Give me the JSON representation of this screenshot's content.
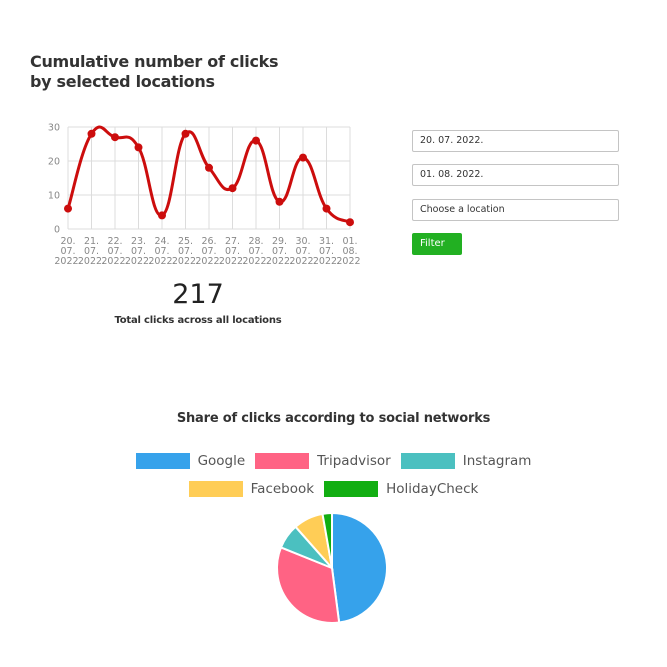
{
  "header": {
    "title_line1": "Cumulative number of clicks",
    "title_line2": "by selected locations"
  },
  "filters": {
    "date_from": "20. 07. 2022.",
    "date_to": "01. 08. 2022.",
    "location_placeholder": "Choose a location",
    "filter_label": "Filter"
  },
  "summary": {
    "total_value": "217",
    "total_label": "Total clicks across all locations"
  },
  "social": {
    "title": "Share of clicks according to social networks"
  },
  "chart_data": [
    {
      "type": "line",
      "title": "",
      "xlabel": "",
      "ylabel": "",
      "categories": [
        [
          "20.",
          "07.",
          "2022."
        ],
        [
          "21.",
          "07.",
          "2022."
        ],
        [
          "22.",
          "07.",
          "2022."
        ],
        [
          "23.",
          "07.",
          "2022."
        ],
        [
          "24.",
          "07.",
          "2022."
        ],
        [
          "25.",
          "07.",
          "2022."
        ],
        [
          "26.",
          "07.",
          "2022."
        ],
        [
          "27.",
          "07.",
          "2022."
        ],
        [
          "28.",
          "07.",
          "2022."
        ],
        [
          "29.",
          "07.",
          "2022."
        ],
        [
          "30.",
          "07.",
          "2022."
        ],
        [
          "31.",
          "07.",
          "2022."
        ],
        [
          "01.",
          "08.",
          "2022."
        ]
      ],
      "series": [
        {
          "values": [
            6,
            28,
            27,
            24,
            4,
            28,
            18,
            12,
            26,
            8,
            21,
            6,
            2
          ],
          "color": "#cc0d0d"
        }
      ],
      "ylim": [
        0,
        30
      ],
      "yticks": [
        "0",
        "10",
        "20",
        "30"
      ],
      "grid": true,
      "line_style": "smooth"
    },
    {
      "type": "pie",
      "title": "",
      "slices": [
        {
          "label": "Google",
          "value": 104,
          "color": "#36a2eb"
        },
        {
          "label": "Tripadvisor",
          "value": 72,
          "color": "#ff6384"
        },
        {
          "label": "Instagram",
          "value": 16,
          "color": "#4bc0c0"
        },
        {
          "label": "Facebook",
          "value": 19,
          "color": "#ffcd56"
        },
        {
          "label": "HolidayCheck",
          "value": 6,
          "color": "#12ae12"
        }
      ],
      "legend": "top"
    }
  ]
}
